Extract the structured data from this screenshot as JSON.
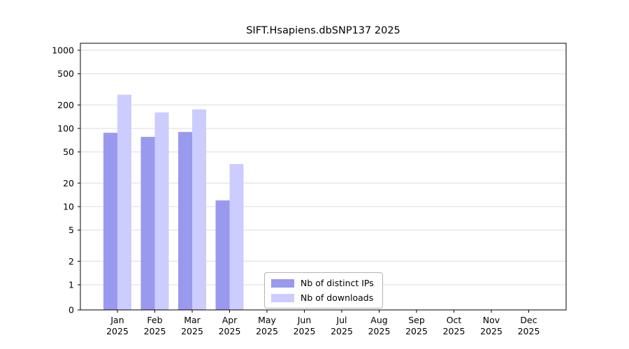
{
  "title": "SIFT.Hsapiens.dbSNP137 2025",
  "chart_data": {
    "type": "bar",
    "title": "SIFT.Hsapiens.dbSNP137 2025",
    "scale": "symlog",
    "grid": true,
    "legend_position": "lower center",
    "xlabel": "",
    "ylabel": "",
    "ylim": [
      0,
      1000
    ],
    "yticks": [
      0,
      1,
      2,
      5,
      10,
      20,
      50,
      100,
      200,
      500,
      1000
    ],
    "categories": [
      "Jan",
      "Feb",
      "Mar",
      "Apr",
      "May",
      "Jun",
      "Jul",
      "Aug",
      "Sep",
      "Oct",
      "Nov",
      "Dec"
    ],
    "category_year": "2025",
    "series": [
      {
        "name": "Nb of distinct IPs",
        "color": "#9999ee",
        "values": [
          88,
          78,
          90,
          12,
          0,
          0,
          0,
          0,
          0,
          0,
          0,
          0
        ]
      },
      {
        "name": "Nb of downloads",
        "color": "#ccccff",
        "values": [
          270,
          160,
          175,
          35,
          0,
          0,
          0,
          0,
          0,
          0,
          0,
          0
        ]
      }
    ]
  }
}
